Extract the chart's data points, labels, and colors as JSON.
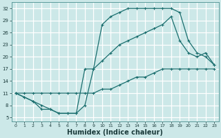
{
  "bg_color": "#cce8e8",
  "grid_color": "#ffffff",
  "line_color": "#1a6e6e",
  "xlabel": "Humidex (Indice chaleur)",
  "xlabel_fontsize": 7.0,
  "ytick_values": [
    5,
    8,
    11,
    14,
    17,
    20,
    23,
    26,
    29,
    32
  ],
  "xtick_values": [
    0,
    1,
    2,
    3,
    4,
    5,
    6,
    7,
    8,
    9,
    10,
    11,
    12,
    13,
    14,
    15,
    16,
    17,
    18,
    19,
    20,
    21,
    22,
    23
  ],
  "xlim": [
    -0.5,
    23.5
  ],
  "ylim": [
    4.0,
    33.5
  ],
  "line1_x": [
    0,
    1,
    2,
    3,
    4,
    5,
    6,
    7,
    8,
    9,
    10,
    11,
    12,
    13,
    14,
    15,
    16,
    17,
    18,
    19,
    20,
    21,
    22,
    23
  ],
  "line1_y": [
    11,
    10,
    9,
    7,
    7,
    6,
    6,
    6,
    8,
    17,
    28,
    30,
    31,
    32,
    32,
    32,
    32,
    32,
    32,
    31,
    24,
    21,
    20,
    18
  ],
  "line2_x": [
    0,
    1,
    2,
    3,
    4,
    5,
    6,
    7,
    8,
    9,
    10,
    11,
    12,
    13,
    14,
    15,
    16,
    17,
    18,
    19,
    20,
    21,
    22,
    23
  ],
  "line2_y": [
    11,
    11,
    11,
    11,
    11,
    11,
    11,
    11,
    11,
    11,
    12,
    12,
    13,
    14,
    15,
    15,
    16,
    17,
    17,
    17,
    17,
    17,
    17,
    17
  ],
  "line3_x": [
    0,
    1,
    2,
    3,
    4,
    5,
    6,
    7,
    8,
    9,
    10,
    11,
    12,
    13,
    14,
    15,
    16,
    17,
    18,
    19,
    20,
    21,
    22,
    23
  ],
  "line3_y": [
    11,
    10,
    9,
    8,
    7,
    6,
    6,
    6,
    17,
    17,
    19,
    21,
    23,
    24,
    25,
    26,
    27,
    28,
    30,
    24,
    21,
    20,
    21,
    18
  ]
}
